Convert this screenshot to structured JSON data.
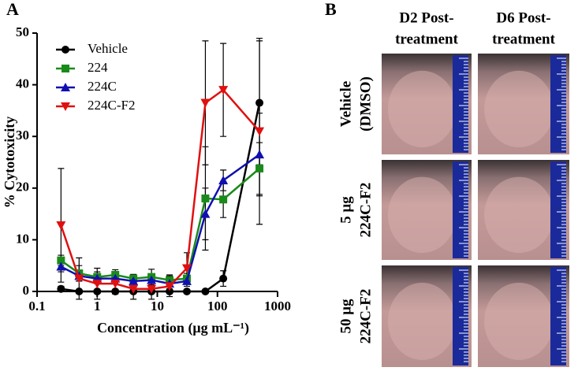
{
  "chart_data": {
    "type": "line",
    "panel_label": "A",
    "ylabel": "% Cytotoxicity",
    "xlabel": "Concentration (μg mL⁻¹)",
    "xscale": "log",
    "xlim": [
      0.1,
      1000
    ],
    "xticks": [
      0.1,
      1,
      10,
      100,
      1000
    ],
    "ylim": [
      0,
      50
    ],
    "yticks": [
      0,
      10,
      20,
      30,
      40,
      50
    ],
    "legend": "upper left",
    "x": [
      0.25,
      0.5,
      1,
      2,
      4,
      8,
      16,
      31,
      63,
      125,
      500
    ],
    "series": [
      {
        "name": "Vehicle",
        "color": "#000000",
        "marker": "circle",
        "values": [
          0.5,
          0,
          0,
          0,
          0,
          0,
          0,
          0,
          0,
          2.5,
          36.5
        ],
        "errors": [
          0.5,
          0.3,
          0.3,
          0.3,
          0.3,
          0.3,
          0.3,
          0.3,
          0.3,
          1.5,
          12
        ]
      },
      {
        "name": "224",
        "color": "#1a8a1a",
        "marker": "square",
        "values": [
          6,
          3.5,
          2.8,
          3.2,
          2.5,
          2.8,
          2.2,
          2.5,
          18,
          17.8,
          23.8
        ],
        "errors": [
          1,
          1.5,
          1,
          1,
          0.8,
          1.5,
          1,
          1,
          10,
          3.5,
          5
        ]
      },
      {
        "name": "224C",
        "color": "#1010b0",
        "marker": "triangle-up",
        "values": [
          4.8,
          3,
          2.5,
          2.5,
          2,
          2.2,
          1.5,
          2,
          15,
          21.5,
          26.5
        ],
        "errors": [
          1,
          1,
          1,
          1,
          1,
          1,
          1,
          1,
          5,
          2,
          8
        ]
      },
      {
        "name": "224C-F2",
        "color": "#e01010",
        "marker": "triangle-down",
        "values": [
          12.8,
          2.5,
          1.5,
          1.5,
          0.5,
          0.5,
          1,
          4.5,
          36.5,
          39,
          31
        ],
        "errors": [
          11,
          4,
          3,
          2,
          2,
          2,
          2,
          3,
          12,
          9,
          18
        ]
      }
    ]
  },
  "photos": {
    "panel_label": "B",
    "columns": [
      [
        "D2 Post-",
        "treatment"
      ],
      [
        "D6 Post-",
        "treatment"
      ]
    ],
    "rows": [
      [
        "Vehicle",
        "(DMSO)"
      ],
      [
        "5 μg",
        "224C-F2"
      ],
      [
        "50 μg",
        "224C-F2"
      ]
    ]
  }
}
